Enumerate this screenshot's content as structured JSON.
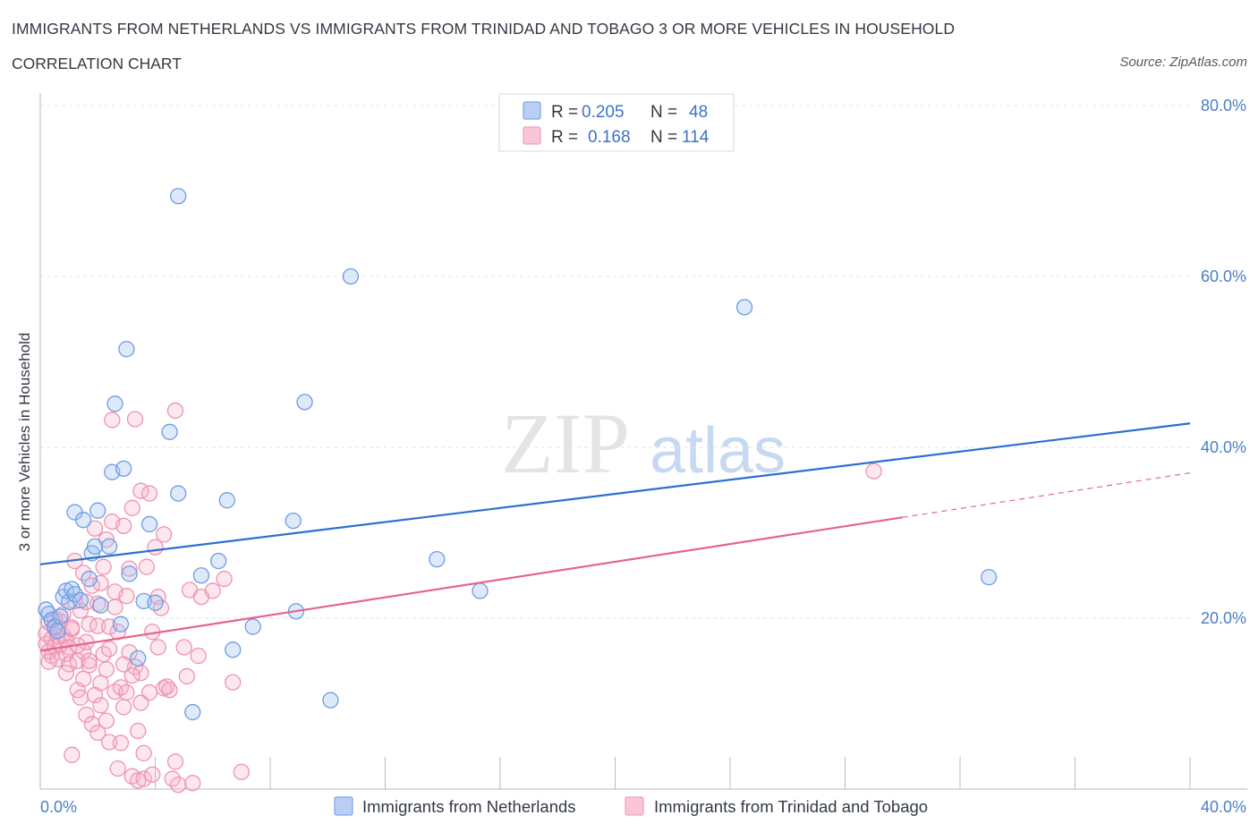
{
  "header": {
    "title": "IMMIGRANTS FROM NETHERLANDS VS IMMIGRANTS FROM TRINIDAD AND TOBAGO 3 OR MORE VEHICLES IN HOUSEHOLD",
    "subtitle": "CORRELATION CHART",
    "source": "Source: ZipAtlas.com"
  },
  "watermark": {
    "zip": "ZIP",
    "atlas": "atlas"
  },
  "legend": {
    "rows": [
      {
        "r_label": "R =",
        "r_value": "0.205",
        "n_label": "N =",
        "n_value": "48"
      },
      {
        "r_label": "R =",
        "r_value": "0.168",
        "n_label": "N =",
        "n_value": "114"
      }
    ]
  },
  "chart_data": {
    "type": "scatter",
    "title": "IMMIGRANTS FROM NETHERLANDS VS IMMIGRANTS FROM TRINIDAD AND TOBAGO 3 OR MORE VEHICLES IN HOUSEHOLD",
    "subtitle": "CORRELATION CHART",
    "xlabel": "",
    "ylabel": "3 or more Vehicles in Household",
    "xlim": [
      0,
      40
    ],
    "ylim": [
      0,
      80
    ],
    "x_tick_labels": [
      "0.0%",
      "40.0%"
    ],
    "y_ticks": [
      20,
      40,
      60,
      80
    ],
    "y_tick_labels": [
      "20.0%",
      "40.0%",
      "60.0%",
      "80.0%"
    ],
    "grid": true,
    "legend_position": "top-center",
    "colors": {
      "netherlands": "#7aa7e8",
      "trinidad": "#f0a1bd",
      "netherlands_line": "#2d6fd0",
      "trinidad_line": "#e5648f"
    },
    "series": [
      {
        "name": "Immigrants from Netherlands",
        "R": 0.205,
        "N": 48,
        "trend": {
          "x": [
            0,
            40
          ],
          "y": [
            26.3,
            42.8
          ]
        },
        "points": [
          [
            0.2,
            21.0
          ],
          [
            0.3,
            20.5
          ],
          [
            0.4,
            19.8
          ],
          [
            0.5,
            19.0
          ],
          [
            0.6,
            18.5
          ],
          [
            0.7,
            20.2
          ],
          [
            0.8,
            22.5
          ],
          [
            0.9,
            23.2
          ],
          [
            1.0,
            21.9
          ],
          [
            1.1,
            23.4
          ],
          [
            1.2,
            22.8
          ],
          [
            1.4,
            22.1
          ],
          [
            1.2,
            32.4
          ],
          [
            1.5,
            31.5
          ],
          [
            1.7,
            24.6
          ],
          [
            1.8,
            27.6
          ],
          [
            1.9,
            28.4
          ],
          [
            2.0,
            32.6
          ],
          [
            2.1,
            21.5
          ],
          [
            2.4,
            28.4
          ],
          [
            2.5,
            37.1
          ],
          [
            2.6,
            45.1
          ],
          [
            2.8,
            19.3
          ],
          [
            2.9,
            37.5
          ],
          [
            3.0,
            51.5
          ],
          [
            3.1,
            25.2
          ],
          [
            3.4,
            15.3
          ],
          [
            3.6,
            22.0
          ],
          [
            3.8,
            31.0
          ],
          [
            4.0,
            21.8
          ],
          [
            4.5,
            41.8
          ],
          [
            4.8,
            34.6
          ],
          [
            4.8,
            69.4
          ],
          [
            5.3,
            9.0
          ],
          [
            5.6,
            25.0
          ],
          [
            6.2,
            26.7
          ],
          [
            6.5,
            33.8
          ],
          [
            6.7,
            16.3
          ],
          [
            7.4,
            19.0
          ],
          [
            8.8,
            31.4
          ],
          [
            8.9,
            20.8
          ],
          [
            9.2,
            45.3
          ],
          [
            10.1,
            10.4
          ],
          [
            10.8,
            60.0
          ],
          [
            13.8,
            26.9
          ],
          [
            15.3,
            23.2
          ],
          [
            24.5,
            56.4
          ],
          [
            33.0,
            24.8
          ]
        ]
      },
      {
        "name": "Immigrants from Trinidad and Tobago",
        "R": 0.168,
        "N": 114,
        "trend": {
          "x": [
            0,
            30
          ],
          "y": [
            16.2,
            31.8
          ]
        },
        "trend_dashed": {
          "x": [
            30,
            40
          ],
          "y": [
            31.8,
            37.0
          ]
        },
        "points": [
          [
            0.2,
            17.0
          ],
          [
            0.2,
            18.2
          ],
          [
            0.3,
            16.1
          ],
          [
            0.3,
            19.5
          ],
          [
            0.4,
            15.6
          ],
          [
            0.4,
            17.6
          ],
          [
            0.5,
            16.7
          ],
          [
            0.5,
            18.8
          ],
          [
            0.6,
            15.2
          ],
          [
            0.6,
            17.9
          ],
          [
            0.7,
            16.9
          ],
          [
            0.7,
            19.6
          ],
          [
            0.8,
            18.0
          ],
          [
            0.8,
            20.5
          ],
          [
            0.9,
            17.4
          ],
          [
            0.9,
            15.8
          ],
          [
            1.0,
            16.6
          ],
          [
            1.0,
            14.6
          ],
          [
            1.1,
            18.7
          ],
          [
            1.1,
            4.0
          ],
          [
            1.2,
            26.7
          ],
          [
            1.2,
            22.0
          ],
          [
            1.3,
            11.6
          ],
          [
            1.3,
            15.0
          ],
          [
            1.4,
            20.9
          ],
          [
            1.4,
            10.7
          ],
          [
            1.5,
            16.1
          ],
          [
            1.5,
            25.3
          ],
          [
            1.6,
            8.7
          ],
          [
            1.6,
            17.2
          ],
          [
            1.7,
            19.3
          ],
          [
            1.7,
            14.5
          ],
          [
            1.8,
            7.6
          ],
          [
            1.8,
            23.8
          ],
          [
            1.9,
            11.0
          ],
          [
            1.9,
            30.5
          ],
          [
            2.0,
            6.6
          ],
          [
            2.0,
            19.1
          ],
          [
            2.1,
            24.1
          ],
          [
            2.1,
            9.8
          ],
          [
            2.2,
            15.8
          ],
          [
            2.2,
            26.0
          ],
          [
            2.3,
            8.0
          ],
          [
            2.3,
            29.2
          ],
          [
            2.4,
            5.5
          ],
          [
            2.4,
            16.4
          ],
          [
            2.5,
            43.2
          ],
          [
            2.5,
            31.3
          ],
          [
            2.6,
            11.4
          ],
          [
            2.6,
            23.1
          ],
          [
            2.7,
            2.4
          ],
          [
            2.7,
            18.4
          ],
          [
            2.8,
            11.9
          ],
          [
            2.8,
            5.4
          ],
          [
            2.9,
            30.8
          ],
          [
            2.9,
            14.6
          ],
          [
            3.0,
            22.6
          ],
          [
            3.0,
            11.3
          ],
          [
            3.1,
            25.8
          ],
          [
            3.1,
            16.0
          ],
          [
            3.2,
            1.5
          ],
          [
            3.2,
            32.9
          ],
          [
            3.3,
            43.3
          ],
          [
            3.3,
            14.3
          ],
          [
            3.4,
            1.0
          ],
          [
            3.4,
            6.8
          ],
          [
            3.5,
            13.6
          ],
          [
            3.5,
            34.9
          ],
          [
            3.6,
            4.2
          ],
          [
            3.6,
            1.2
          ],
          [
            3.7,
            26.0
          ],
          [
            3.8,
            34.6
          ],
          [
            3.8,
            11.3
          ],
          [
            3.9,
            1.7
          ],
          [
            4.0,
            28.3
          ],
          [
            4.1,
            22.5
          ],
          [
            4.1,
            16.6
          ],
          [
            4.2,
            21.2
          ],
          [
            4.3,
            11.8
          ],
          [
            4.3,
            29.8
          ],
          [
            4.5,
            11.6
          ],
          [
            4.6,
            1.2
          ],
          [
            4.7,
            3.2
          ],
          [
            4.7,
            44.3
          ],
          [
            4.8,
            0.5
          ],
          [
            5.0,
            16.6
          ],
          [
            5.1,
            13.2
          ],
          [
            5.2,
            23.3
          ],
          [
            5.3,
            0.7
          ],
          [
            5.6,
            22.5
          ],
          [
            6.0,
            23.2
          ],
          [
            6.4,
            24.6
          ],
          [
            6.7,
            12.5
          ],
          [
            7.0,
            2.0
          ],
          [
            1.5,
            12.9
          ],
          [
            2.0,
            21.7
          ],
          [
            0.3,
            14.9
          ],
          [
            0.5,
            19.9
          ],
          [
            1.1,
            18.9
          ],
          [
            1.3,
            16.8
          ],
          [
            1.7,
            15.0
          ],
          [
            2.1,
            12.4
          ],
          [
            2.4,
            19.0
          ],
          [
            2.6,
            21.3
          ],
          [
            2.9,
            9.6
          ],
          [
            3.2,
            13.3
          ],
          [
            3.5,
            10.1
          ],
          [
            3.9,
            18.4
          ],
          [
            4.4,
            12.0
          ],
          [
            5.5,
            15.6
          ],
          [
            0.9,
            13.6
          ],
          [
            1.6,
            21.9
          ],
          [
            2.3,
            14.0
          ],
          [
            29.0,
            37.2
          ]
        ]
      }
    ]
  }
}
